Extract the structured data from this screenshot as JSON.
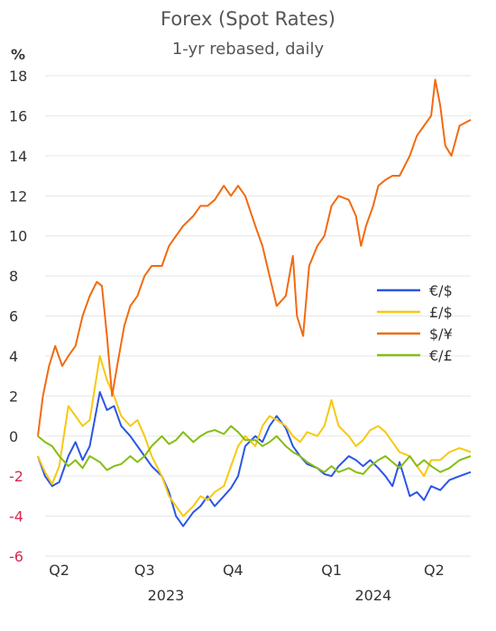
{
  "chart_data": {
    "type": "line",
    "title": "Forex (Spot Rates)",
    "subtitle": "1-yr rebased, daily",
    "ylabel": "%",
    "ylim": [
      -6,
      18
    ],
    "y_ticks": [
      18,
      16,
      14,
      12,
      10,
      8,
      6,
      4,
      2,
      0,
      -2,
      -4,
      -6
    ],
    "x_range": [
      "2023-04-01",
      "2024-05-31"
    ],
    "x_ticks": [
      {
        "label": "Q2",
        "date": "2023-04-22"
      },
      {
        "label": "Q3",
        "date": "2023-07-15"
      },
      {
        "label": "Q4",
        "date": "2023-10-10"
      },
      {
        "label": "Q1",
        "date": "2024-01-15"
      },
      {
        "label": "Q2",
        "date": "2024-04-25"
      }
    ],
    "year_labels": [
      {
        "label": "2023",
        "date": "2023-08-05"
      },
      {
        "label": "2024",
        "date": "2024-02-25"
      }
    ],
    "legend_position": "right",
    "grid": true,
    "series": [
      {
        "name": "€/$",
        "color": "#2a55e5",
        "points": [
          [
            "2023-04-01",
            -1.0
          ],
          [
            "2023-04-08",
            -2.0
          ],
          [
            "2023-04-15",
            -2.5
          ],
          [
            "2023-04-22",
            -2.3
          ],
          [
            "2023-05-01",
            -1.0
          ],
          [
            "2023-05-08",
            -0.3
          ],
          [
            "2023-05-15",
            -1.2
          ],
          [
            "2023-05-22",
            -0.5
          ],
          [
            "2023-06-01",
            2.2
          ],
          [
            "2023-06-08",
            1.3
          ],
          [
            "2023-06-15",
            1.5
          ],
          [
            "2023-06-22",
            0.5
          ],
          [
            "2023-07-01",
            0.0
          ],
          [
            "2023-07-08",
            -0.5
          ],
          [
            "2023-07-15",
            -1.0
          ],
          [
            "2023-07-22",
            -1.5
          ],
          [
            "2023-08-01",
            -2.0
          ],
          [
            "2023-08-08",
            -2.8
          ],
          [
            "2023-08-15",
            -4.0
          ],
          [
            "2023-08-22",
            -4.5
          ],
          [
            "2023-09-01",
            -3.8
          ],
          [
            "2023-09-08",
            -3.5
          ],
          [
            "2023-09-15",
            -3.0
          ],
          [
            "2023-09-22",
            -3.5
          ],
          [
            "2023-10-01",
            -3.0
          ],
          [
            "2023-10-08",
            -2.6
          ],
          [
            "2023-10-15",
            -2.0
          ],
          [
            "2023-10-22",
            -0.5
          ],
          [
            "2023-11-01",
            0.0
          ],
          [
            "2023-11-08",
            -0.3
          ],
          [
            "2023-11-15",
            0.5
          ],
          [
            "2023-11-22",
            1.0
          ],
          [
            "2023-12-01",
            0.4
          ],
          [
            "2023-12-08",
            -0.5
          ],
          [
            "2023-12-15",
            -1.0
          ],
          [
            "2023-12-22",
            -1.4
          ],
          [
            "2024-01-01",
            -1.6
          ],
          [
            "2024-01-08",
            -1.9
          ],
          [
            "2024-01-15",
            -2.0
          ],
          [
            "2024-01-22",
            -1.5
          ],
          [
            "2024-02-01",
            -1.0
          ],
          [
            "2024-02-08",
            -1.2
          ],
          [
            "2024-02-15",
            -1.5
          ],
          [
            "2024-02-22",
            -1.2
          ],
          [
            "2024-03-01",
            -1.6
          ],
          [
            "2024-03-08",
            -2.0
          ],
          [
            "2024-03-15",
            -2.5
          ],
          [
            "2024-03-22",
            -1.3
          ],
          [
            "2024-04-01",
            -3.0
          ],
          [
            "2024-04-08",
            -2.8
          ],
          [
            "2024-04-15",
            -3.2
          ],
          [
            "2024-04-22",
            -2.5
          ],
          [
            "2024-05-01",
            -2.7
          ],
          [
            "2024-05-10",
            -2.2
          ],
          [
            "2024-05-20",
            -2.0
          ],
          [
            "2024-05-31",
            -1.8
          ]
        ]
      },
      {
        "name": "£/$",
        "color": "#f7c811",
        "points": [
          [
            "2023-04-01",
            -1.0
          ],
          [
            "2023-04-08",
            -1.8
          ],
          [
            "2023-04-15",
            -2.4
          ],
          [
            "2023-04-22",
            -1.5
          ],
          [
            "2023-05-01",
            1.5
          ],
          [
            "2023-05-08",
            1.0
          ],
          [
            "2023-05-15",
            0.5
          ],
          [
            "2023-05-22",
            0.8
          ],
          [
            "2023-06-01",
            4.0
          ],
          [
            "2023-06-08",
            2.8
          ],
          [
            "2023-06-15",
            2.0
          ],
          [
            "2023-06-22",
            1.0
          ],
          [
            "2023-07-01",
            0.5
          ],
          [
            "2023-07-08",
            0.8
          ],
          [
            "2023-07-15",
            0.0
          ],
          [
            "2023-07-22",
            -1.0
          ],
          [
            "2023-08-01",
            -2.0
          ],
          [
            "2023-08-08",
            -3.0
          ],
          [
            "2023-08-15",
            -3.5
          ],
          [
            "2023-08-22",
            -4.0
          ],
          [
            "2023-09-01",
            -3.5
          ],
          [
            "2023-09-08",
            -3.0
          ],
          [
            "2023-09-15",
            -3.2
          ],
          [
            "2023-09-22",
            -2.8
          ],
          [
            "2023-10-01",
            -2.5
          ],
          [
            "2023-10-08",
            -1.5
          ],
          [
            "2023-10-15",
            -0.5
          ],
          [
            "2023-10-22",
            0.0
          ],
          [
            "2023-11-01",
            -0.5
          ],
          [
            "2023-11-08",
            0.5
          ],
          [
            "2023-11-15",
            1.0
          ],
          [
            "2023-11-22",
            0.8
          ],
          [
            "2023-12-01",
            0.5
          ],
          [
            "2023-12-08",
            0.0
          ],
          [
            "2023-12-15",
            -0.3
          ],
          [
            "2023-12-22",
            0.2
          ],
          [
            "2024-01-01",
            0.0
          ],
          [
            "2024-01-08",
            0.5
          ],
          [
            "2024-01-15",
            1.8
          ],
          [
            "2024-01-22",
            0.5
          ],
          [
            "2024-02-01",
            0.0
          ],
          [
            "2024-02-08",
            -0.5
          ],
          [
            "2024-02-15",
            -0.2
          ],
          [
            "2024-02-22",
            0.3
          ],
          [
            "2024-03-01",
            0.5
          ],
          [
            "2024-03-08",
            0.2
          ],
          [
            "2024-03-15",
            -0.3
          ],
          [
            "2024-03-22",
            -0.8
          ],
          [
            "2024-04-01",
            -1.0
          ],
          [
            "2024-04-08",
            -1.5
          ],
          [
            "2024-04-15",
            -2.0
          ],
          [
            "2024-04-22",
            -1.2
          ],
          [
            "2024-05-01",
            -1.2
          ],
          [
            "2024-05-10",
            -0.8
          ],
          [
            "2024-05-20",
            -0.6
          ],
          [
            "2024-05-31",
            -0.8
          ]
        ]
      },
      {
        "name": "$/¥",
        "color": "#f26a0f",
        "points": [
          [
            "2023-04-01",
            0.0
          ],
          [
            "2023-04-06",
            2.0
          ],
          [
            "2023-04-12",
            3.5
          ],
          [
            "2023-04-18",
            4.5
          ],
          [
            "2023-04-25",
            3.5
          ],
          [
            "2023-05-01",
            4.0
          ],
          [
            "2023-05-08",
            4.5
          ],
          [
            "2023-05-15",
            6.0
          ],
          [
            "2023-05-22",
            7.0
          ],
          [
            "2023-05-29",
            7.7
          ],
          [
            "2023-06-03",
            7.5
          ],
          [
            "2023-06-08",
            5.0
          ],
          [
            "2023-06-13",
            2.0
          ],
          [
            "2023-06-18",
            3.5
          ],
          [
            "2023-06-25",
            5.5
          ],
          [
            "2023-07-01",
            6.5
          ],
          [
            "2023-07-08",
            7.0
          ],
          [
            "2023-07-15",
            8.0
          ],
          [
            "2023-07-22",
            8.5
          ],
          [
            "2023-08-01",
            8.5
          ],
          [
            "2023-08-08",
            9.5
          ],
          [
            "2023-08-15",
            10.0
          ],
          [
            "2023-08-22",
            10.5
          ],
          [
            "2023-09-01",
            11.0
          ],
          [
            "2023-09-08",
            11.5
          ],
          [
            "2023-09-15",
            11.5
          ],
          [
            "2023-09-22",
            11.8
          ],
          [
            "2023-10-01",
            12.5
          ],
          [
            "2023-10-08",
            12.0
          ],
          [
            "2023-10-15",
            12.5
          ],
          [
            "2023-10-22",
            12.0
          ],
          [
            "2023-11-01",
            10.5
          ],
          [
            "2023-11-08",
            9.5
          ],
          [
            "2023-11-15",
            8.0
          ],
          [
            "2023-11-22",
            6.5
          ],
          [
            "2023-12-01",
            7.0
          ],
          [
            "2023-12-08",
            9.0
          ],
          [
            "2023-12-12",
            6.0
          ],
          [
            "2023-12-18",
            5.0
          ],
          [
            "2023-12-24",
            8.5
          ],
          [
            "2024-01-01",
            9.5
          ],
          [
            "2024-01-08",
            10.0
          ],
          [
            "2024-01-15",
            11.5
          ],
          [
            "2024-01-22",
            12.0
          ],
          [
            "2024-02-01",
            11.8
          ],
          [
            "2024-02-08",
            11.0
          ],
          [
            "2024-02-13",
            9.5
          ],
          [
            "2024-02-18",
            10.5
          ],
          [
            "2024-02-25",
            11.5
          ],
          [
            "2024-03-01",
            12.5
          ],
          [
            "2024-03-08",
            12.8
          ],
          [
            "2024-03-15",
            13.0
          ],
          [
            "2024-03-22",
            13.0
          ],
          [
            "2024-04-01",
            14.0
          ],
          [
            "2024-04-08",
            15.0
          ],
          [
            "2024-04-15",
            15.5
          ],
          [
            "2024-04-22",
            16.0
          ],
          [
            "2024-04-26",
            17.8
          ],
          [
            "2024-05-01",
            16.5
          ],
          [
            "2024-05-06",
            14.5
          ],
          [
            "2024-05-12",
            14.0
          ],
          [
            "2024-05-20",
            15.5
          ],
          [
            "2024-05-31",
            15.8
          ]
        ]
      },
      {
        "name": "€/£",
        "color": "#86bd12",
        "points": [
          [
            "2023-04-01",
            0.0
          ],
          [
            "2023-04-08",
            -0.3
          ],
          [
            "2023-04-15",
            -0.5
          ],
          [
            "2023-04-22",
            -1.0
          ],
          [
            "2023-05-01",
            -1.5
          ],
          [
            "2023-05-08",
            -1.2
          ],
          [
            "2023-05-15",
            -1.6
          ],
          [
            "2023-05-22",
            -1.0
          ],
          [
            "2023-06-01",
            -1.3
          ],
          [
            "2023-06-08",
            -1.7
          ],
          [
            "2023-06-15",
            -1.5
          ],
          [
            "2023-06-22",
            -1.4
          ],
          [
            "2023-07-01",
            -1.0
          ],
          [
            "2023-07-08",
            -1.3
          ],
          [
            "2023-07-15",
            -1.0
          ],
          [
            "2023-07-22",
            -0.5
          ],
          [
            "2023-08-01",
            0.0
          ],
          [
            "2023-08-08",
            -0.4
          ],
          [
            "2023-08-15",
            -0.2
          ],
          [
            "2023-08-22",
            0.2
          ],
          [
            "2023-09-01",
            -0.3
          ],
          [
            "2023-09-08",
            0.0
          ],
          [
            "2023-09-15",
            0.2
          ],
          [
            "2023-09-22",
            0.3
          ],
          [
            "2023-10-01",
            0.1
          ],
          [
            "2023-10-08",
            0.5
          ],
          [
            "2023-10-15",
            0.2
          ],
          [
            "2023-10-22",
            -0.2
          ],
          [
            "2023-11-01",
            -0.2
          ],
          [
            "2023-11-08",
            -0.5
          ],
          [
            "2023-11-15",
            -0.3
          ],
          [
            "2023-11-22",
            0.0
          ],
          [
            "2023-12-01",
            -0.5
          ],
          [
            "2023-12-08",
            -0.8
          ],
          [
            "2023-12-15",
            -1.0
          ],
          [
            "2023-12-22",
            -1.3
          ],
          [
            "2024-01-01",
            -1.6
          ],
          [
            "2024-01-08",
            -1.8
          ],
          [
            "2024-01-15",
            -1.5
          ],
          [
            "2024-01-22",
            -1.8
          ],
          [
            "2024-02-01",
            -1.6
          ],
          [
            "2024-02-08",
            -1.8
          ],
          [
            "2024-02-15",
            -1.9
          ],
          [
            "2024-02-22",
            -1.5
          ],
          [
            "2024-03-01",
            -1.2
          ],
          [
            "2024-03-08",
            -1.0
          ],
          [
            "2024-03-15",
            -1.3
          ],
          [
            "2024-03-22",
            -1.6
          ],
          [
            "2024-04-01",
            -1.0
          ],
          [
            "2024-04-08",
            -1.5
          ],
          [
            "2024-04-15",
            -1.2
          ],
          [
            "2024-04-22",
            -1.5
          ],
          [
            "2024-05-01",
            -1.8
          ],
          [
            "2024-05-10",
            -1.6
          ],
          [
            "2024-05-20",
            -1.2
          ],
          [
            "2024-05-31",
            -1.0
          ]
        ]
      }
    ]
  }
}
